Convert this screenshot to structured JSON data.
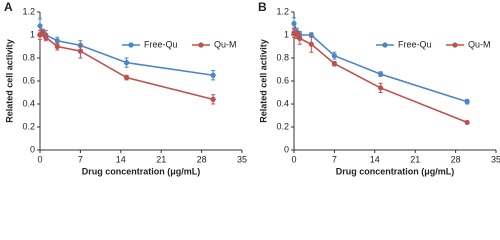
{
  "chart_data": [
    {
      "type": "line",
      "panel": "A",
      "x_label": "Drug concentration (μg/mL)",
      "y_label": "Related cell activity",
      "x": [
        0,
        0.5,
        1,
        3,
        7,
        15,
        30
      ],
      "series": [
        {
          "name": "Free-Qu",
          "color": "#4a86c8",
          "values": [
            1.08,
            1.02,
            1.0,
            0.95,
            0.91,
            0.76,
            0.65
          ],
          "errors": [
            0.06,
            0.03,
            0.04,
            0.03,
            0.04,
            0.04,
            0.04
          ]
        },
        {
          "name": "Qu-M",
          "color": "#c0504d",
          "values": [
            1.0,
            1.02,
            0.98,
            0.9,
            0.86,
            0.63,
            0.44
          ],
          "errors": [
            0.04,
            0.03,
            0.03,
            0.03,
            0.06,
            0.02,
            0.04
          ]
        }
      ],
      "xlim": [
        0,
        35
      ],
      "xticks": [
        0,
        7,
        14,
        21,
        28,
        35
      ],
      "ylim": [
        0,
        1.2
      ],
      "yticks": [
        0,
        0.2,
        0.4,
        0.6,
        0.8,
        1,
        1.2
      ],
      "grid": false
    },
    {
      "type": "line",
      "panel": "B",
      "x_label": "Drug concentration (μg/mL)",
      "y_label": "Related cell activity",
      "x": [
        0,
        0.5,
        1,
        3,
        7,
        15,
        30
      ],
      "series": [
        {
          "name": "Free-Qu",
          "color": "#4a86c8",
          "values": [
            1.1,
            1.03,
            1.0,
            1.0,
            0.82,
            0.66,
            0.42
          ],
          "errors": [
            0.05,
            0.03,
            0.03,
            0.02,
            0.03,
            0.02,
            0.02
          ]
        },
        {
          "name": "Qu-M",
          "color": "#c0504d",
          "values": [
            1.02,
            1.0,
            0.97,
            0.92,
            0.75,
            0.54,
            0.24
          ],
          "errors": [
            0.04,
            0.03,
            0.05,
            0.07,
            0.02,
            0.04,
            0.01
          ]
        }
      ],
      "xlim": [
        0,
        35
      ],
      "xticks": [
        0,
        7,
        14,
        21,
        28,
        35
      ],
      "ylim": [
        0,
        1.2
      ],
      "yticks": [
        0,
        0.2,
        0.4,
        0.6,
        0.8,
        1,
        1.2
      ],
      "grid": false
    }
  ]
}
